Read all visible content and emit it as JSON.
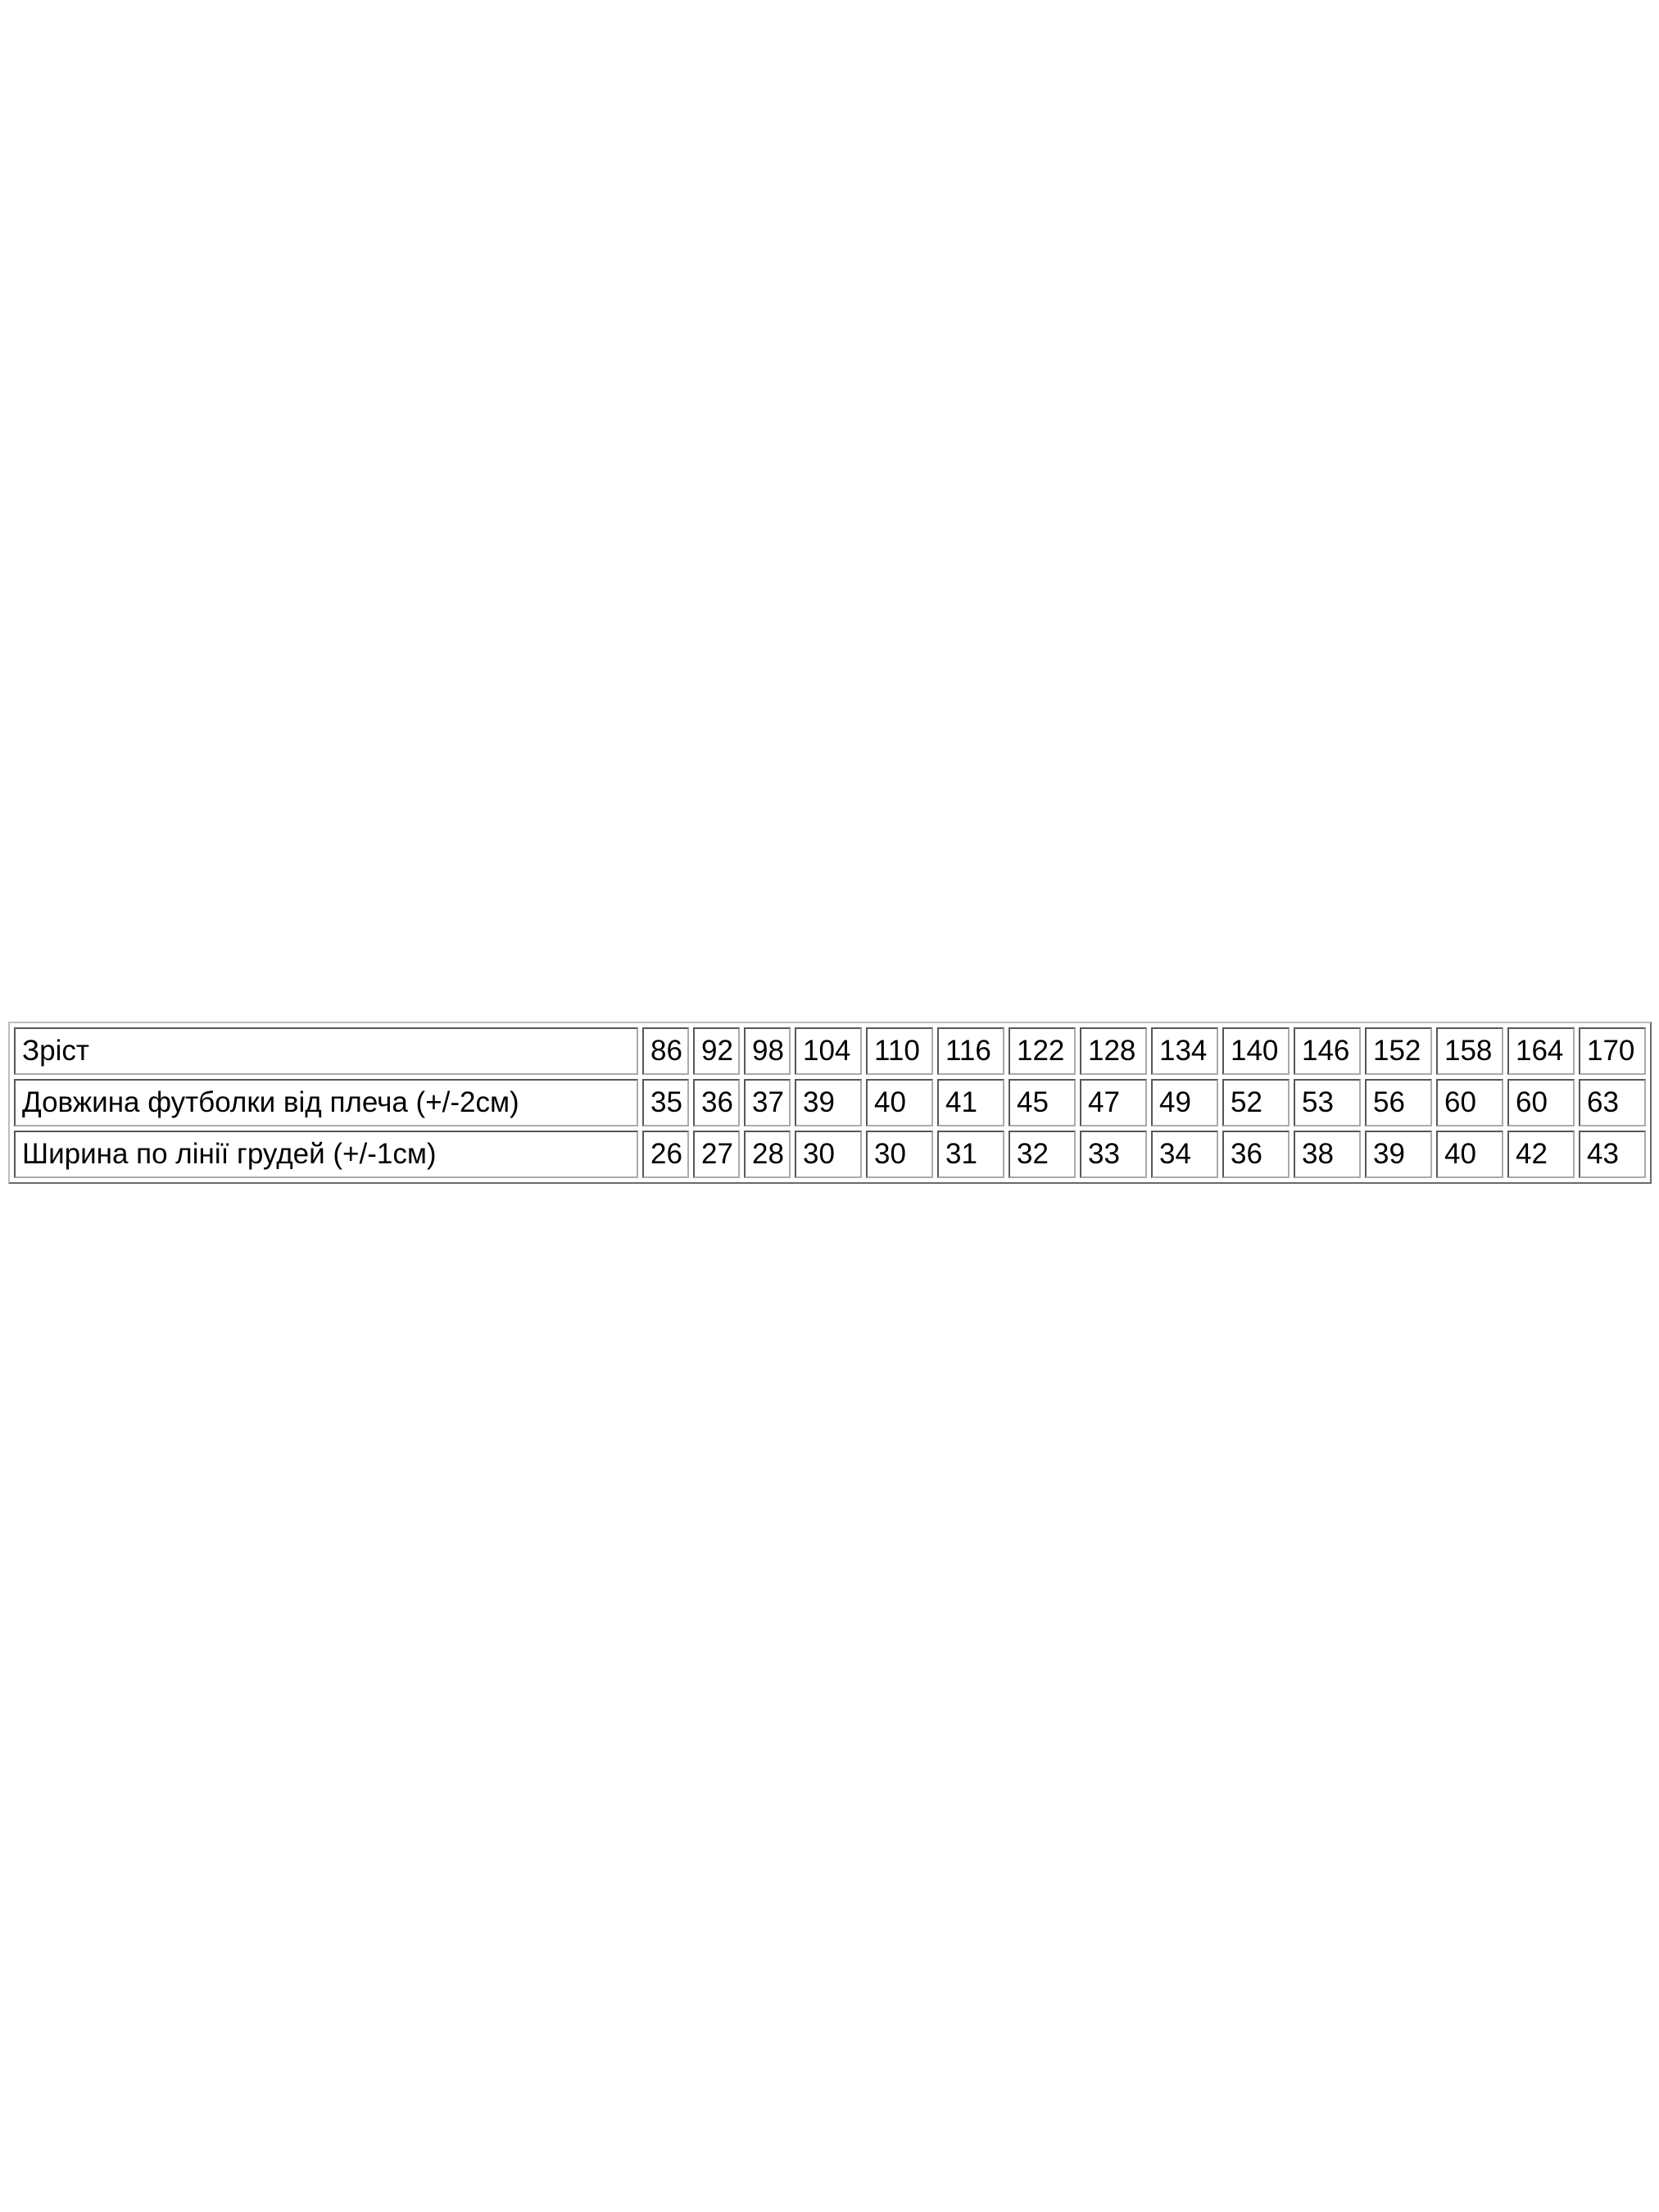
{
  "page": {
    "background": "#ffffff",
    "text_color": "#000000",
    "table_border_color": "#808080"
  },
  "size_table": {
    "rows": [
      {
        "label": "Зріст",
        "values": [
          "86",
          "92",
          "98",
          "104",
          "110",
          "116",
          "122",
          "128",
          "134",
          "140",
          "146",
          "152",
          "158",
          "164",
          "170"
        ]
      },
      {
        "label": "Довжина футболки від плеча (+/-2см)",
        "values": [
          "35",
          "36",
          "37",
          "39",
          "40",
          "41",
          "45",
          "47",
          "49",
          "52",
          "53",
          "56",
          "60",
          "60",
          "63"
        ]
      },
      {
        "label": "Ширина по лінії грудей (+/-1см)",
        "values": [
          "26",
          "27",
          "28",
          "30",
          "30",
          "31",
          "32",
          "33",
          "34",
          "36",
          "38",
          "39",
          "40",
          "42",
          "43"
        ]
      }
    ]
  }
}
